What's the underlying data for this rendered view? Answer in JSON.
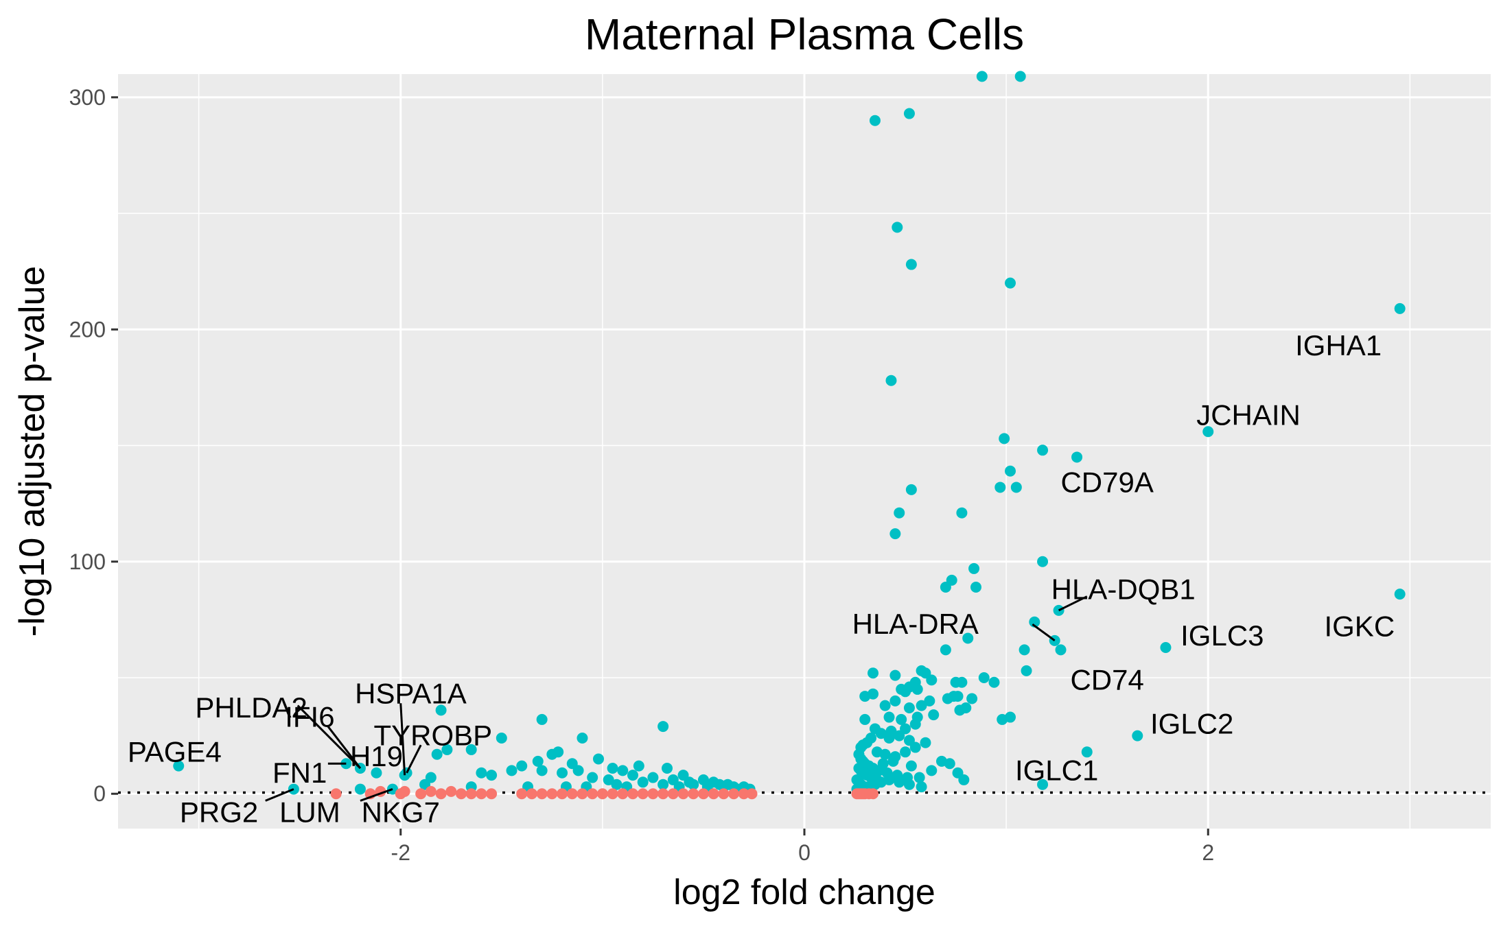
{
  "chart_data": {
    "type": "scatter",
    "title": "Maternal Plasma Cells",
    "xlabel": "log2 fold change",
    "ylabel": "-log10 adjusted p-value",
    "xlim": [
      -3.4,
      3.4
    ],
    "ylim": [
      -15,
      310
    ],
    "x_ticks": [
      -2,
      0,
      2
    ],
    "y_ticks": [
      0,
      100,
      200,
      300
    ],
    "x_tick_labels": [
      "-2",
      "0",
      "2"
    ],
    "y_tick_labels": [
      "0",
      "100",
      "200",
      "300"
    ],
    "grid": true,
    "legend": "none",
    "threshold_line_y": 0.5,
    "colors": {
      "significant": "#00BFC4",
      "not_significant": "#F8766D",
      "panel_background": "#EBEBEB",
      "grid": "#FFFFFF"
    },
    "series": [
      {
        "color": "#00BFC4",
        "points": [
          [
            2.95,
            209
          ],
          [
            2.95,
            86
          ],
          [
            2.0,
            156
          ],
          [
            1.79,
            63
          ],
          [
            1.65,
            25
          ],
          [
            1.4,
            18
          ],
          [
            1.18,
            4
          ],
          [
            1.35,
            145
          ],
          [
            1.18,
            148
          ],
          [
            1.18,
            100
          ],
          [
            1.27,
            62
          ],
          [
            1.24,
            66
          ],
          [
            1.26,
            79
          ],
          [
            1.14,
            74
          ],
          [
            1.09,
            62
          ],
          [
            1.1,
            53
          ],
          [
            0.99,
            153
          ],
          [
            1.02,
            139
          ],
          [
            0.97,
            132
          ],
          [
            1.05,
            132
          ],
          [
            1.02,
            220
          ],
          [
            0.88,
            309
          ],
          [
            1.07,
            309
          ],
          [
            0.35,
            290
          ],
          [
            0.52,
            293
          ],
          [
            0.46,
            244
          ],
          [
            0.53,
            228
          ],
          [
            0.43,
            178
          ],
          [
            0.78,
            121
          ],
          [
            0.47,
            121
          ],
          [
            0.53,
            131
          ],
          [
            0.45,
            112
          ],
          [
            0.84,
            97
          ],
          [
            0.85,
            89
          ],
          [
            0.7,
            89
          ],
          [
            0.73,
            92
          ],
          [
            0.81,
            67
          ],
          [
            0.7,
            62
          ],
          [
            0.78,
            48
          ],
          [
            0.75,
            48
          ],
          [
            0.89,
            50
          ],
          [
            0.94,
            48
          ],
          [
            0.83,
            41
          ],
          [
            0.77,
            36
          ],
          [
            0.8,
            37
          ],
          [
            0.98,
            32
          ],
          [
            1.02,
            33
          ],
          [
            0.71,
            41
          ],
          [
            0.74,
            42
          ],
          [
            0.76,
            42
          ],
          [
            0.58,
            53
          ],
          [
            0.6,
            52
          ],
          [
            0.63,
            49
          ],
          [
            0.55,
            48
          ],
          [
            0.52,
            46
          ],
          [
            0.48,
            45
          ],
          [
            0.56,
            45
          ],
          [
            0.5,
            44
          ],
          [
            0.45,
            51
          ],
          [
            0.34,
            52
          ],
          [
            0.3,
            42
          ],
          [
            0.34,
            43
          ],
          [
            0.62,
            40
          ],
          [
            0.58,
            38
          ],
          [
            0.52,
            37
          ],
          [
            0.45,
            40
          ],
          [
            0.4,
            38
          ],
          [
            0.3,
            32
          ],
          [
            0.42,
            33
          ],
          [
            0.56,
            33
          ],
          [
            0.64,
            34
          ],
          [
            0.48,
            32
          ],
          [
            0.55,
            30
          ],
          [
            0.5,
            28
          ],
          [
            0.43,
            27
          ],
          [
            0.38,
            26
          ],
          [
            0.35,
            28
          ],
          [
            0.33,
            24
          ],
          [
            0.31,
            22
          ],
          [
            0.29,
            21
          ],
          [
            0.28,
            20
          ],
          [
            0.36,
            18
          ],
          [
            0.4,
            17
          ],
          [
            0.45,
            16
          ],
          [
            0.5,
            18
          ],
          [
            0.55,
            20
          ],
          [
            0.6,
            22
          ],
          [
            0.52,
            23
          ],
          [
            0.47,
            25
          ],
          [
            0.42,
            24
          ],
          [
            0.27,
            17
          ],
          [
            0.28,
            15
          ],
          [
            0.29,
            14
          ],
          [
            0.3,
            13
          ],
          [
            0.32,
            12
          ],
          [
            0.34,
            11
          ],
          [
            0.37,
            10
          ],
          [
            0.41,
            9
          ],
          [
            0.46,
            8
          ],
          [
            0.51,
            7
          ],
          [
            0.57,
            7
          ],
          [
            0.63,
            10
          ],
          [
            0.68,
            14
          ],
          [
            0.72,
            13
          ],
          [
            0.76,
            9
          ],
          [
            0.79,
            6
          ],
          [
            0.53,
            12
          ],
          [
            0.44,
            14
          ],
          [
            0.39,
            13
          ],
          [
            0.27,
            11
          ],
          [
            0.28,
            10
          ],
          [
            0.29,
            9
          ],
          [
            0.31,
            8
          ],
          [
            0.33,
            7
          ],
          [
            0.36,
            6
          ],
          [
            0.26,
            6
          ],
          [
            0.27,
            5
          ],
          [
            0.28,
            4
          ],
          [
            0.3,
            3
          ],
          [
            0.32,
            3
          ],
          [
            0.35,
            4
          ],
          [
            0.38,
            5
          ],
          [
            0.42,
            6
          ],
          [
            0.47,
            5
          ],
          [
            0.52,
            4
          ],
          [
            0.58,
            3
          ],
          [
            0.26,
            2
          ],
          [
            0.27,
            2
          ],
          [
            0.29,
            2
          ],
          [
            0.31,
            2
          ],
          [
            -3.1,
            12
          ],
          [
            -2.53,
            2
          ],
          [
            -2.2,
            11
          ],
          [
            -2.27,
            13
          ],
          [
            -2.2,
            2
          ],
          [
            -2.12,
            9
          ],
          [
            -2.04,
            2
          ],
          [
            -1.97,
            9
          ],
          [
            -1.98,
            8
          ],
          [
            -1.8,
            36
          ],
          [
            -1.77,
            19
          ],
          [
            -1.82,
            17
          ],
          [
            -1.65,
            19
          ],
          [
            -1.88,
            4
          ],
          [
            -1.85,
            7
          ],
          [
            -1.65,
            3
          ],
          [
            -1.6,
            9
          ],
          [
            -1.55,
            8
          ],
          [
            -1.5,
            24
          ],
          [
            -1.45,
            10
          ],
          [
            -1.4,
            12
          ],
          [
            -1.37,
            3
          ],
          [
            -1.3,
            32
          ],
          [
            -1.32,
            14
          ],
          [
            -1.3,
            10
          ],
          [
            -1.25,
            17
          ],
          [
            -1.22,
            18
          ],
          [
            -1.2,
            9
          ],
          [
            -1.18,
            3
          ],
          [
            -1.15,
            13
          ],
          [
            -1.1,
            24
          ],
          [
            -1.12,
            10
          ],
          [
            -1.08,
            3
          ],
          [
            -1.05,
            7
          ],
          [
            -1.02,
            15
          ],
          [
            -0.97,
            6
          ],
          [
            -0.95,
            11
          ],
          [
            -0.93,
            4
          ],
          [
            -0.9,
            10
          ],
          [
            -0.88,
            3
          ],
          [
            -0.85,
            8
          ],
          [
            -0.82,
            12
          ],
          [
            -0.8,
            5
          ],
          [
            -0.75,
            7
          ],
          [
            -0.7,
            4
          ],
          [
            -0.7,
            29
          ],
          [
            -0.68,
            11
          ],
          [
            -0.65,
            6
          ],
          [
            -0.62,
            3
          ],
          [
            -0.6,
            8
          ],
          [
            -0.57,
            5
          ],
          [
            -0.55,
            4
          ],
          [
            -0.5,
            6
          ],
          [
            -0.48,
            3
          ],
          [
            -0.45,
            5
          ],
          [
            -0.42,
            4
          ],
          [
            -0.4,
            3
          ],
          [
            -0.38,
            4
          ],
          [
            -0.35,
            3
          ],
          [
            -0.33,
            2
          ],
          [
            -0.3,
            3
          ],
          [
            -0.28,
            2
          ],
          [
            -0.27,
            2
          ]
        ]
      },
      {
        "color": "#F8766D",
        "points": [
          [
            -2.32,
            0
          ],
          [
            -2.15,
            0
          ],
          [
            -2.1,
            1
          ],
          [
            -2.0,
            0
          ],
          [
            -1.98,
            1
          ],
          [
            -1.9,
            0
          ],
          [
            -1.85,
            1
          ],
          [
            -1.8,
            0
          ],
          [
            -1.75,
            1
          ],
          [
            -1.7,
            0
          ],
          [
            -1.65,
            0
          ],
          [
            -1.6,
            0
          ],
          [
            -1.55,
            0
          ],
          [
            -1.4,
            0
          ],
          [
            -1.35,
            0
          ],
          [
            -1.3,
            0
          ],
          [
            -1.25,
            0
          ],
          [
            -1.2,
            0
          ],
          [
            -1.15,
            0
          ],
          [
            -1.1,
            0
          ],
          [
            -1.05,
            0
          ],
          [
            -1.0,
            0
          ],
          [
            -0.95,
            0
          ],
          [
            -0.9,
            0
          ],
          [
            -0.85,
            0
          ],
          [
            -0.8,
            0
          ],
          [
            -0.75,
            0
          ],
          [
            -0.7,
            0
          ],
          [
            -0.65,
            0
          ],
          [
            -0.6,
            0
          ],
          [
            -0.55,
            0
          ],
          [
            -0.5,
            0
          ],
          [
            -0.45,
            0
          ],
          [
            -0.4,
            0
          ],
          [
            -0.35,
            0
          ],
          [
            -0.3,
            0
          ],
          [
            -0.26,
            0
          ],
          [
            0.26,
            0
          ],
          [
            0.27,
            0
          ],
          [
            0.28,
            0
          ],
          [
            0.29,
            0
          ],
          [
            0.3,
            0
          ],
          [
            0.32,
            0
          ],
          [
            0.34,
            0
          ]
        ]
      }
    ],
    "gene_labels": [
      {
        "label": "IGHA1",
        "x": 2.95,
        "y": 209,
        "lx": 2.86,
        "ly": 193,
        "anchor": "end",
        "leader": false
      },
      {
        "label": "JCHAIN",
        "x": 2.0,
        "y": 156,
        "lx": 2.2,
        "ly": 163,
        "anchor": "middle",
        "leader": false
      },
      {
        "label": "CD79A",
        "x": 1.35,
        "y": 145,
        "lx": 1.5,
        "ly": 134,
        "anchor": "middle",
        "leader": false
      },
      {
        "label": "HLA-DQB1",
        "x": 1.26,
        "y": 79,
        "lx": 1.58,
        "ly": 88,
        "anchor": "middle",
        "leader": true,
        "jx": 1.4,
        "jy": 85
      },
      {
        "label": "HLA-DRA",
        "x": 1.24,
        "y": 66,
        "lx": 0.55,
        "ly": 73,
        "anchor": "middle",
        "leader": true,
        "jx": 1.13,
        "jy": 73
      },
      {
        "label": "CD74",
        "x": 1.27,
        "y": 62,
        "lx": 1.5,
        "ly": 49,
        "anchor": "middle",
        "leader": false
      },
      {
        "label": "IGLC3",
        "x": 1.79,
        "y": 63,
        "lx": 2.07,
        "ly": 68,
        "anchor": "middle",
        "leader": false
      },
      {
        "label": "IGKC",
        "x": 2.95,
        "y": 86,
        "lx": 2.75,
        "ly": 72,
        "anchor": "middle",
        "leader": false
      },
      {
        "label": "IGLC2",
        "x": 1.65,
        "y": 25,
        "lx": 1.92,
        "ly": 30,
        "anchor": "middle",
        "leader": false
      },
      {
        "label": "IGLC1",
        "x": 1.18,
        "y": 4,
        "lx": 1.25,
        "ly": 10,
        "anchor": "middle",
        "leader": false
      },
      {
        "label": "HSPA1A",
        "x": -1.98,
        "y": 8,
        "lx": -1.95,
        "ly": 43,
        "anchor": "middle",
        "leader": true,
        "jx": -2.0,
        "jy": 39
      },
      {
        "label": "TYROBP",
        "x": -1.97,
        "y": 9,
        "lx": -1.84,
        "ly": 25,
        "anchor": "middle",
        "leader": true,
        "jx": -1.9,
        "jy": 21
      },
      {
        "label": "PHLDA2",
        "x": -2.2,
        "y": 11,
        "lx": -2.74,
        "ly": 37,
        "anchor": "middle",
        "leader": true,
        "jx": -2.51,
        "jy": 38
      },
      {
        "label": "IFI6",
        "x": -2.2,
        "y": 11,
        "lx": -2.45,
        "ly": 33,
        "anchor": "middle",
        "leader": true,
        "jx": -2.36,
        "jy": 29
      },
      {
        "label": "H19",
        "x": -2.2,
        "y": 2,
        "lx": -2.12,
        "ly": 16,
        "anchor": "middle",
        "leader": false
      },
      {
        "label": "PAGE4",
        "x": -3.1,
        "y": 12,
        "lx": -3.12,
        "ly": 18,
        "anchor": "middle",
        "leader": false
      },
      {
        "label": "FN1",
        "x": -2.27,
        "y": 13,
        "lx": -2.5,
        "ly": 9,
        "anchor": "middle",
        "leader": true,
        "jx": -2.36,
        "jy": 13
      },
      {
        "label": "PRG2",
        "x": -2.53,
        "y": 2,
        "lx": -2.9,
        "ly": -8,
        "anchor": "middle",
        "leader": true,
        "jx": -2.67,
        "jy": -3
      },
      {
        "label": "LUM",
        "x": -2.04,
        "y": 2,
        "lx": -2.45,
        "ly": -8,
        "anchor": "middle",
        "leader": false
      },
      {
        "label": "NKG7",
        "x": -2.04,
        "y": 2,
        "lx": -2.0,
        "ly": -8,
        "anchor": "middle",
        "leader": true,
        "jx": -2.2,
        "jy": -3
      }
    ]
  }
}
